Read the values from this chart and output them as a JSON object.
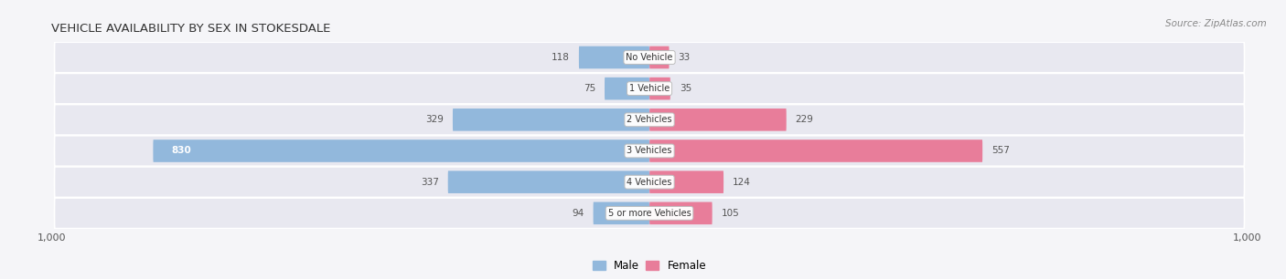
{
  "title": "VEHICLE AVAILABILITY BY SEX IN STOKESDALE",
  "source": "Source: ZipAtlas.com",
  "categories": [
    "No Vehicle",
    "1 Vehicle",
    "2 Vehicles",
    "3 Vehicles",
    "4 Vehicles",
    "5 or more Vehicles"
  ],
  "male_values": [
    118,
    75,
    329,
    830,
    337,
    94
  ],
  "female_values": [
    33,
    35,
    229,
    557,
    124,
    105
  ],
  "male_color": "#92b8dc",
  "female_color": "#e87d9a",
  "row_bg_color": "#e8e8f0",
  "label_color": "#555555",
  "title_color": "#333333",
  "axis_max": 1000,
  "figsize": [
    14.06,
    3.06
  ],
  "dpi": 100
}
